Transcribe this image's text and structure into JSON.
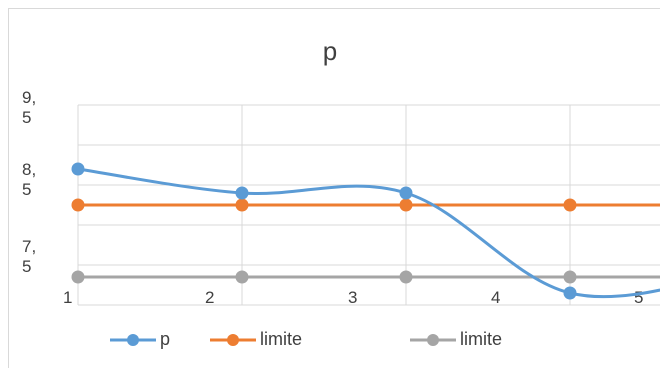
{
  "chart_data": {
    "type": "line",
    "title": "p",
    "xlabel": "",
    "ylabel": "",
    "categories": [
      "1",
      "2",
      "3",
      "4",
      "5"
    ],
    "ytick_labels": [
      "9,\n5",
      "8,\n5",
      "7,\n5"
    ],
    "series": [
      {
        "name": "p",
        "color": "#5b9bd5",
        "values": [
          8.95,
          8.65,
          8.65,
          7.4,
          7.65
        ],
        "smooth": true
      },
      {
        "name": "limite",
        "color": "#ed7d31",
        "values": [
          8.5,
          8.5,
          8.5,
          8.5,
          8.5
        ],
        "smooth": false
      },
      {
        "name": "limite",
        "color": "#a5a5a5",
        "values": [
          7.6,
          7.6,
          7.6,
          7.6,
          7.6
        ],
        "smooth": false
      }
    ],
    "ylim": [
      7.25,
      9.75
    ],
    "grid": true,
    "legend": "bottom"
  }
}
